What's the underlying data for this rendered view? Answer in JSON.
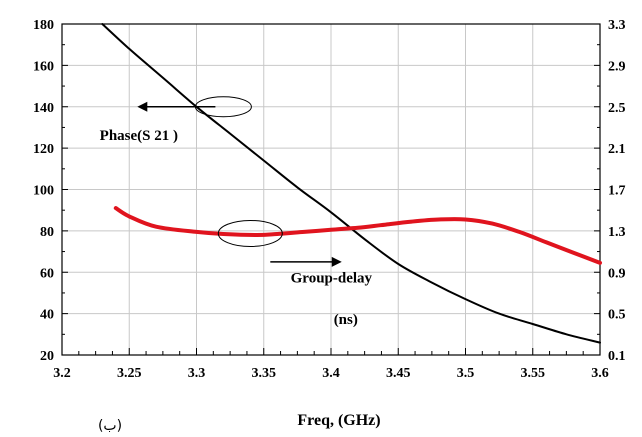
{
  "chart_data": {
    "type": "line",
    "xlabel": "Freq, (GHz)",
    "sublabel": "(ب)",
    "x_ticks": [
      "3.2",
      "3.25",
      "3.3",
      "3.35",
      "3.4",
      "3.45",
      "3.5",
      "3.55",
      "3.6"
    ],
    "xlim": [
      3.2,
      3.6
    ],
    "y_left_ticks": [
      "180",
      "160",
      "140",
      "120",
      "100",
      "80",
      "60",
      "40",
      "20"
    ],
    "ylim_left": [
      20,
      180
    ],
    "y_right_ticks": [
      "3.3",
      "2.9",
      "2.5",
      "2.1",
      "1.7",
      "1.3",
      "0.9",
      "0.5",
      "0.1"
    ],
    "ylim_right": [
      0.1,
      3.3
    ],
    "grid": true,
    "series": [
      {
        "name": "Phase(S 21 )",
        "axis": "left",
        "color": "#000000",
        "x": [
          3.23,
          3.25,
          3.275,
          3.3,
          3.325,
          3.35,
          3.375,
          3.4,
          3.425,
          3.45,
          3.475,
          3.5,
          3.525,
          3.55,
          3.575,
          3.6
        ],
        "y": [
          180,
          168,
          154,
          140,
          127,
          114,
          101,
          89,
          76,
          64,
          55,
          47,
          40,
          35,
          30,
          26
        ]
      },
      {
        "name": "Group-delay (ns)",
        "axis": "right",
        "color": "#e0141e",
        "x": [
          3.24,
          3.25,
          3.27,
          3.3,
          3.32,
          3.345,
          3.36,
          3.38,
          3.4,
          3.42,
          3.44,
          3.46,
          3.48,
          3.5,
          3.52,
          3.54,
          3.56,
          3.58,
          3.6
        ],
        "y": [
          1.52,
          1.44,
          1.34,
          1.29,
          1.27,
          1.26,
          1.27,
          1.29,
          1.31,
          1.33,
          1.36,
          1.39,
          1.41,
          1.41,
          1.37,
          1.29,
          1.19,
          1.09,
          0.99
        ]
      }
    ],
    "annotations": [
      {
        "text": "Phase(S 21 )",
        "points_to": "left axis"
      },
      {
        "text": "Group-delay",
        "line2": "(ns)",
        "points_to": "right axis"
      }
    ]
  }
}
